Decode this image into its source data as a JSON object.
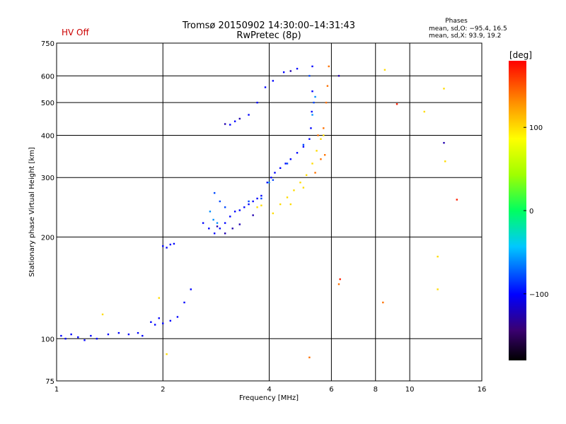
{
  "header": {
    "status": "HV Off",
    "title": "Tromsø 20150902 14:30:00–14:31:43",
    "subtitle": "RwPretec (8p)",
    "phases_title": "Phases",
    "phases_o": "mean, sd,O: −95.4, 16.5",
    "phases_x": "mean, sd,X:  93.9, 19.2"
  },
  "colors": {
    "status": "#cc0000"
  },
  "chart_data": {
    "type": "scatter",
    "title": "Tromsø 20150902 14:30:00–14:31:43",
    "subtitle": "RwPretec (8p)",
    "xlabel": "Frequency [MHz]",
    "ylabel": "Stationary phase Virtual Height [km]",
    "x_scale": "log",
    "y_scale": "log",
    "xlim": [
      1,
      16
    ],
    "ylim": [
      75,
      750
    ],
    "x_ticks": [
      1,
      2,
      4,
      6,
      8,
      10,
      16
    ],
    "x_tick_labels": [
      "1",
      "2",
      "4",
      "6",
      "8",
      "10",
      "16"
    ],
    "y_ticks": [
      75,
      100,
      200,
      300,
      400,
      500,
      600,
      750
    ],
    "y_tick_labels": [
      "75",
      "100",
      "200",
      "300",
      "400",
      "500",
      "600",
      "750"
    ],
    "grid": true,
    "colorbar": {
      "label": "[deg]",
      "range": [
        -180,
        180
      ],
      "ticks": [
        100,
        0,
        -100
      ],
      "tick_labels": [
        "100",
        "0",
        "−100"
      ]
    },
    "series": [
      {
        "phase": -100,
        "points": [
          [
            1.03,
            102
          ],
          [
            1.06,
            100
          ],
          [
            1.1,
            103
          ],
          [
            1.15,
            101
          ],
          [
            1.2,
            99
          ],
          [
            1.25,
            102
          ],
          [
            1.3,
            100
          ],
          [
            1.4,
            103
          ],
          [
            1.5,
            104
          ],
          [
            1.6,
            103
          ],
          [
            1.7,
            104
          ],
          [
            1.75,
            102
          ],
          [
            1.85,
            112
          ],
          [
            1.9,
            110
          ],
          [
            1.95,
            115
          ],
          [
            2.0,
            111
          ],
          [
            2.1,
            113
          ],
          [
            2.2,
            116
          ],
          [
            2.3,
            128
          ],
          [
            2.4,
            140
          ],
          [
            2.0,
            188
          ],
          [
            2.05,
            186
          ],
          [
            2.1,
            190
          ],
          [
            2.15,
            191
          ],
          [
            2.6,
            220
          ],
          [
            2.7,
            212
          ],
          [
            2.8,
            205
          ],
          [
            2.9,
            212
          ],
          [
            3.0,
            220
          ],
          [
            3.1,
            230
          ],
          [
            3.2,
            238
          ],
          [
            3.3,
            240
          ],
          [
            3.4,
            245
          ],
          [
            3.5,
            250
          ],
          [
            3.6,
            255
          ],
          [
            3.7,
            260
          ],
          [
            3.8,
            265
          ],
          [
            3.95,
            290
          ],
          [
            4.05,
            300
          ],
          [
            4.15,
            310
          ],
          [
            4.3,
            320
          ],
          [
            4.45,
            330
          ],
          [
            4.6,
            340
          ],
          [
            4.8,
            355
          ],
          [
            5.0,
            370
          ],
          [
            5.2,
            390
          ],
          [
            5.25,
            420
          ],
          [
            5.28,
            470
          ],
          [
            5.3,
            540
          ],
          [
            5.3,
            640
          ],
          [
            3.1,
            430
          ],
          [
            3.2,
            440
          ],
          [
            3.5,
            460
          ],
          [
            3.7,
            500
          ],
          [
            3.9,
            555
          ],
          [
            4.1,
            580
          ],
          [
            4.4,
            615
          ],
          [
            4.8,
            630
          ]
        ]
      },
      {
        "phase": -80,
        "points": [
          [
            2.8,
            270
          ],
          [
            2.9,
            255
          ],
          [
            3.0,
            245
          ],
          [
            3.5,
            255
          ],
          [
            3.8,
            260
          ],
          [
            4.1,
            295
          ],
          [
            4.5,
            330
          ],
          [
            5.0,
            375
          ],
          [
            5.35,
            500
          ],
          [
            5.2,
            600
          ]
        ]
      },
      {
        "phase": -60,
        "points": [
          [
            2.72,
            238
          ],
          [
            2.78,
            225
          ],
          [
            2.85,
            220
          ],
          [
            4.0,
            290
          ],
          [
            5.3,
            460
          ],
          [
            5.4,
            520
          ]
        ]
      },
      {
        "phase": -125,
        "points": [
          [
            2.85,
            215
          ],
          [
            3.0,
            205
          ],
          [
            3.15,
            212
          ],
          [
            3.3,
            218
          ],
          [
            3.6,
            232
          ],
          [
            3.0,
            432
          ],
          [
            3.3,
            448
          ],
          [
            4.6,
            620
          ],
          [
            6.3,
            600
          ],
          [
            12.5,
            380
          ]
        ]
      },
      {
        "phase": 100,
        "points": [
          [
            3.7,
            245
          ],
          [
            3.8,
            248
          ],
          [
            4.1,
            235
          ],
          [
            4.3,
            250
          ],
          [
            4.5,
            262
          ],
          [
            4.7,
            275
          ],
          [
            4.9,
            290
          ],
          [
            5.1,
            305
          ],
          [
            5.3,
            330
          ],
          [
            5.45,
            360
          ],
          [
            5.6,
            390
          ],
          [
            5.7,
            400
          ],
          [
            4.6,
            250
          ],
          [
            5.0,
            280
          ],
          [
            1.35,
            118
          ],
          [
            1.95,
            132
          ],
          [
            2.05,
            90
          ],
          [
            8.5,
            625
          ],
          [
            11.0,
            470
          ],
          [
            12.0,
            175
          ],
          [
            12.6,
            335
          ],
          [
            12.5,
            550
          ],
          [
            12.0,
            140
          ]
        ]
      },
      {
        "phase": 140,
        "points": [
          [
            5.5,
            400
          ],
          [
            5.7,
            420
          ],
          [
            5.8,
            500
          ],
          [
            5.85,
            560
          ],
          [
            5.9,
            640
          ],
          [
            5.75,
            350
          ],
          [
            5.6,
            340
          ],
          [
            5.4,
            310
          ],
          [
            8.4,
            128
          ],
          [
            5.2,
            88
          ],
          [
            6.3,
            145
          ]
        ]
      },
      {
        "phase": 170,
        "points": [
          [
            9.2,
            495
          ],
          [
            13.6,
            258
          ],
          [
            6.35,
            150
          ]
        ]
      }
    ]
  }
}
